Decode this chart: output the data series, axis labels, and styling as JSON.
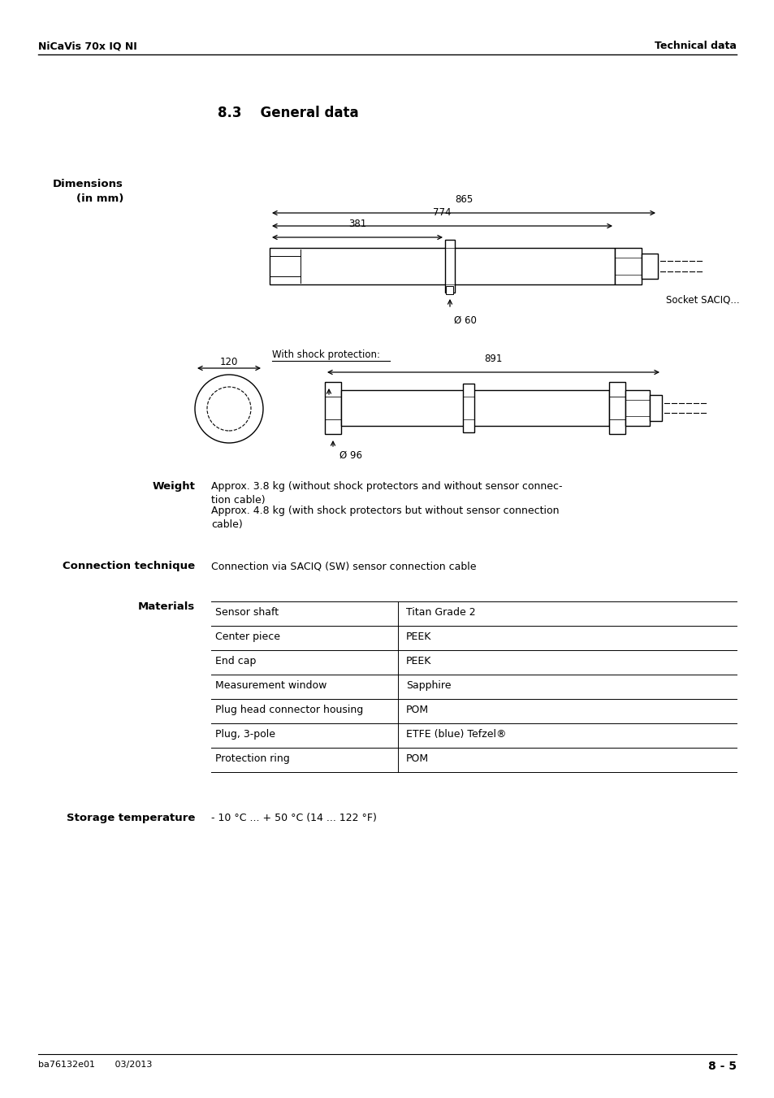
{
  "header_left": "NiCaVis 70x IQ NI",
  "header_right": "Technical data",
  "section_title": "8.3    General data",
  "footer_left": "ba76132e01       03/2013",
  "footer_right": "8 - 5",
  "dimensions_label": "Dimensions\n(in mm)",
  "dim_865": "865",
  "dim_774": "774",
  "dim_381": "381",
  "dim_60": "Ø 60",
  "socket_label": "Socket SACIQ...",
  "shock_protection_label": "With shock protection:",
  "dim_891": "891",
  "dim_120": "120",
  "dim_96": "Ø 96",
  "weight_label": "Weight",
  "weight_text1": "Approx. 3.8 kg (without shock protectors and without sensor connec-\ntion cable)",
  "weight_text2": "Approx. 4.8 kg (with shock protectors but without sensor connection\ncable)",
  "connection_label": "Connection technique",
  "connection_text": "Connection via SACIQ (SW) sensor connection cable",
  "materials_label": "Materials",
  "table_rows": [
    [
      "Sensor shaft",
      "Titan Grade 2"
    ],
    [
      "Center piece",
      "PEEK"
    ],
    [
      "End cap",
      "PEEK"
    ],
    [
      "Measurement window",
      "Sapphire"
    ],
    [
      "Plug head connector housing",
      "POM"
    ],
    [
      "Plug, 3-pole",
      "ETFE (blue) Tefzel®"
    ],
    [
      "Protection ring",
      "POM"
    ]
  ],
  "storage_label": "Storage temperature",
  "storage_text": "- 10 °C ... + 50 °C (14 ... 122 °F)",
  "bg_color": "#ffffff",
  "text_color": "#000000",
  "line_color": "#000000"
}
